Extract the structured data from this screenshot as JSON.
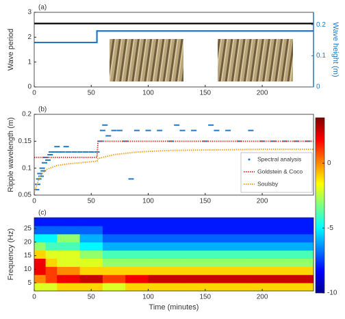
{
  "chart_data": [
    {
      "type": "line",
      "panel_label": "(a)",
      "ylabel": "Wave period",
      "y2label": "Wave height (m)",
      "xlim": [
        0,
        245
      ],
      "xticks": [
        0,
        50,
        100,
        150,
        200
      ],
      "ylim": [
        0,
        3
      ],
      "yticks": [
        0,
        1,
        2,
        3
      ],
      "y2lim": [
        0,
        0.24
      ],
      "y2ticks": [
        0,
        0.1,
        0.2
      ],
      "y2color": "#1f78c1",
      "series": [
        {
          "color": "#000000",
          "x": [
            0,
            245
          ],
          "values": [
            2.55,
            2.55
          ]
        },
        {
          "color": "#1f78c1",
          "axis": "y2",
          "x": [
            0,
            55,
            55,
            245
          ],
          "values": [
            0.143,
            0.143,
            0.18,
            0.18
          ]
        }
      ]
    },
    {
      "type": "scatter",
      "panel_label": "(b)",
      "ylabel": "Ripple wavelength (m)",
      "xlim": [
        0,
        245
      ],
      "xticks": [
        0,
        50,
        100,
        150,
        200
      ],
      "ylim": [
        0.05,
        0.2
      ],
      "yticks": [
        0.05,
        0.1,
        0.15,
        0.2
      ],
      "legend": "lower-right",
      "series": [
        {
          "name": "Spectral analysis",
          "color": "#1f78c1",
          "mode": "markers",
          "x": [
            2,
            3,
            4,
            5,
            6,
            7,
            8,
            9,
            10,
            12,
            14,
            15,
            18,
            20,
            22,
            25,
            28,
            30,
            35,
            40,
            45,
            50,
            55,
            58,
            60,
            62,
            65,
            70,
            75,
            80,
            85,
            90,
            100,
            110,
            120,
            125,
            130,
            140,
            150,
            155,
            160,
            170,
            180,
            190,
            200,
            210,
            220,
            230,
            240
          ],
          "values": [
            0.06,
            0.07,
            0.08,
            0.09,
            0.085,
            0.1,
            0.095,
            0.11,
            0.12,
            0.115,
            0.125,
            0.13,
            0.13,
            0.14,
            0.13,
            0.13,
            0.14,
            0.13,
            0.13,
            0.13,
            0.13,
            0.13,
            0.13,
            0.15,
            0.17,
            0.18,
            0.16,
            0.17,
            0.17,
            0.15,
            0.08,
            0.17,
            0.17,
            0.17,
            0.15,
            0.18,
            0.17,
            0.17,
            0.15,
            0.18,
            0.17,
            0.17,
            0.15,
            0.17,
            0.15,
            0.15,
            0.15,
            0.15,
            0.15
          ]
        },
        {
          "name": "Goldstein & Coco",
          "color": "#d1402a",
          "mode": "dotted-line",
          "x": [
            0,
            55,
            56,
            245
          ],
          "values": [
            0.12,
            0.12,
            0.15,
            0.15
          ]
        },
        {
          "name": "Soulsby",
          "color": "#f0a020",
          "mode": "dotted-line",
          "x": [
            0,
            5,
            10,
            20,
            30,
            40,
            50,
            55,
            56,
            70,
            90,
            120,
            160,
            200,
            245
          ],
          "values": [
            0.055,
            0.085,
            0.097,
            0.105,
            0.108,
            0.11,
            0.112,
            0.113,
            0.118,
            0.125,
            0.13,
            0.133,
            0.134,
            0.135,
            0.135
          ]
        }
      ]
    },
    {
      "type": "heatmap",
      "panel_label": "(c)",
      "ylabel": "Frequency (Hz)",
      "xlabel": "Time (minutes)",
      "xlim": [
        0,
        245
      ],
      "xticks": [
        0,
        50,
        100,
        150,
        200
      ],
      "ylim": [
        2,
        29
      ],
      "yticks": [
        5,
        10,
        15,
        20,
        25
      ],
      "x_edges": [
        0,
        10,
        20,
        40,
        60,
        80,
        100,
        130,
        160,
        190,
        220,
        245
      ],
      "y_edges": [
        2,
        5,
        8,
        11,
        14,
        17,
        20,
        23,
        26,
        29
      ],
      "colormap": "jet",
      "clim": [
        -10,
        3.5
      ],
      "cticks": [
        0,
        -5,
        -10
      ],
      "values": [
        [
          -2,
          -2,
          -1,
          -1,
          -2,
          -1,
          -1,
          -1,
          -1,
          -1,
          -1
        ],
        [
          0,
          1,
          2,
          2.5,
          1,
          2,
          2.5,
          2.5,
          2.5,
          2.5,
          2.5
        ],
        [
          2,
          1,
          0,
          -1,
          -1,
          -1,
          -1,
          -1,
          -1,
          -1,
          -1
        ],
        [
          2,
          -1,
          -2,
          -2,
          -3,
          -3,
          -3,
          -3,
          -3,
          -3,
          -3
        ],
        [
          -1,
          -2,
          -2,
          -3,
          -4,
          -4,
          -4,
          -4,
          -4,
          -4,
          -4
        ],
        [
          -3,
          -4,
          -4,
          -5,
          -6,
          -6,
          -6,
          -6,
          -6,
          -6,
          -6
        ],
        [
          -5,
          -5,
          -3,
          -6,
          -7,
          -7,
          -7,
          -7,
          -7,
          -7,
          -7
        ],
        [
          -7,
          -7,
          -7,
          -7,
          -8,
          -8,
          -8,
          -8,
          -8,
          -8,
          -8
        ],
        [
          -8,
          -8,
          -8,
          -8,
          -8,
          -8,
          -8,
          -8,
          -8,
          -8,
          -8
        ]
      ]
    }
  ]
}
